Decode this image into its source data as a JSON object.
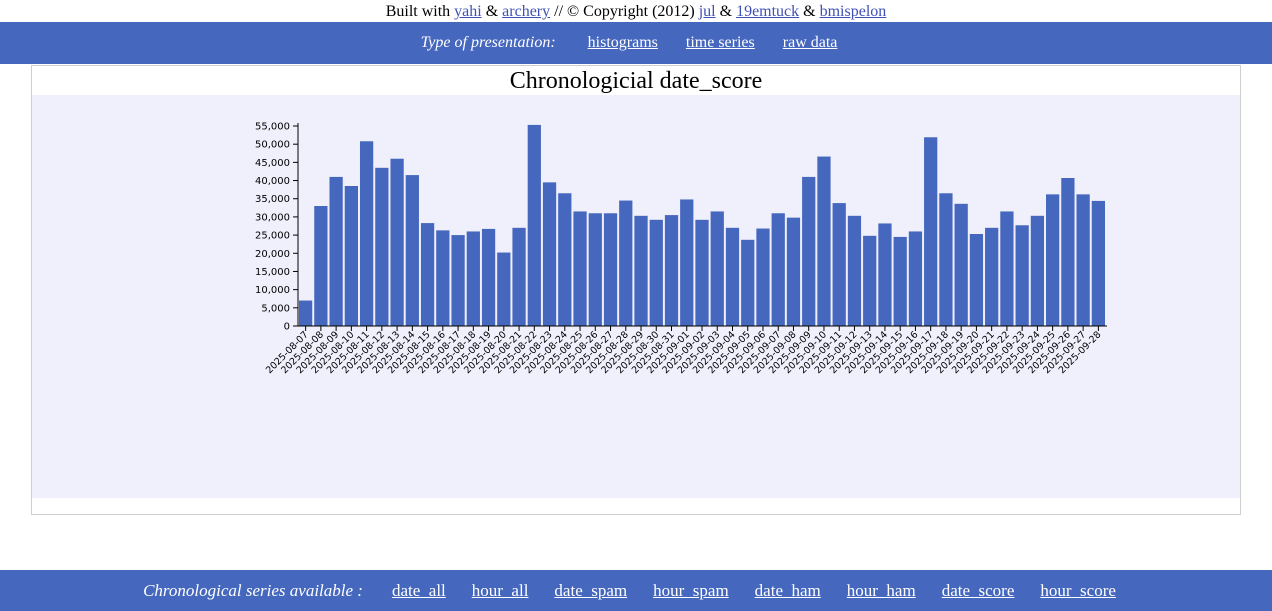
{
  "credits": {
    "prefix": "Built with",
    "link1": "yahi",
    "amp1": "&",
    "link2": "archery",
    "middle": "// © Copyright (2012)",
    "link3": "jul",
    "amp2": "&",
    "link4": "19emtuck",
    "amp3": "&",
    "link5": "bmispelon"
  },
  "topnav": {
    "label": "Type of presentation:",
    "items": [
      "histograms",
      "time series",
      "raw data"
    ]
  },
  "bottomnav": {
    "label": "Chronological series available :",
    "items": [
      "date_all",
      "hour_all",
      "date_spam",
      "hour_spam",
      "date_ham",
      "hour_ham",
      "date_score",
      "hour_score"
    ]
  },
  "colors": {
    "bar": "#4567bd",
    "nav": "#4567bd",
    "plot_bg": "#eff0fc",
    "link": "#3f51b5"
  },
  "chart_data": {
    "type": "bar",
    "title": "Chronologicial date_score",
    "xlabel": "",
    "ylabel": "",
    "ylim": [
      0,
      55000
    ],
    "yticks": [
      0,
      5000,
      10000,
      15000,
      20000,
      25000,
      30000,
      35000,
      40000,
      45000,
      50000,
      55000
    ],
    "grid": false,
    "categories": [
      "2025-08-07",
      "2025-08-08",
      "2025-08-09",
      "2025-08-10",
      "2025-08-11",
      "2025-08-12",
      "2025-08-13",
      "2025-08-14",
      "2025-08-15",
      "2025-08-16",
      "2025-08-17",
      "2025-08-18",
      "2025-08-19",
      "2025-08-20",
      "2025-08-21",
      "2025-08-22",
      "2025-08-23",
      "2025-08-24",
      "2025-08-25",
      "2025-08-26",
      "2025-08-27",
      "2025-08-28",
      "2025-08-29",
      "2025-08-30",
      "2025-08-31",
      "2025-09-01",
      "2025-09-02",
      "2025-09-03",
      "2025-09-04",
      "2025-09-05",
      "2025-09-06",
      "2025-09-07",
      "2025-09-08",
      "2025-09-09",
      "2025-09-10",
      "2025-09-11",
      "2025-09-12",
      "2025-09-13",
      "2025-09-14",
      "2025-09-15",
      "2025-09-16",
      "2025-09-17",
      "2025-09-18",
      "2025-09-19",
      "2025-09-20",
      "2025-09-21",
      "2025-09-22",
      "2025-09-23",
      "2025-09-24",
      "2025-09-25",
      "2025-09-26",
      "2025-09-27",
      "2025-09-28"
    ],
    "values": [
      7000,
      33000,
      41000,
      38500,
      50800,
      43500,
      46000,
      41500,
      28300,
      26300,
      25000,
      26000,
      26700,
      20200,
      27000,
      55300,
      39500,
      36500,
      31500,
      31000,
      31000,
      34500,
      30300,
      29200,
      30500,
      34800,
      29200,
      31500,
      27000,
      23700,
      26800,
      31000,
      29800,
      41000,
      46600,
      33800,
      30300,
      24800,
      28200,
      24500,
      26000,
      51900,
      36500,
      33600,
      25300,
      27000,
      31500,
      27700,
      30300,
      36200,
      40700,
      36200,
      34400
    ]
  }
}
